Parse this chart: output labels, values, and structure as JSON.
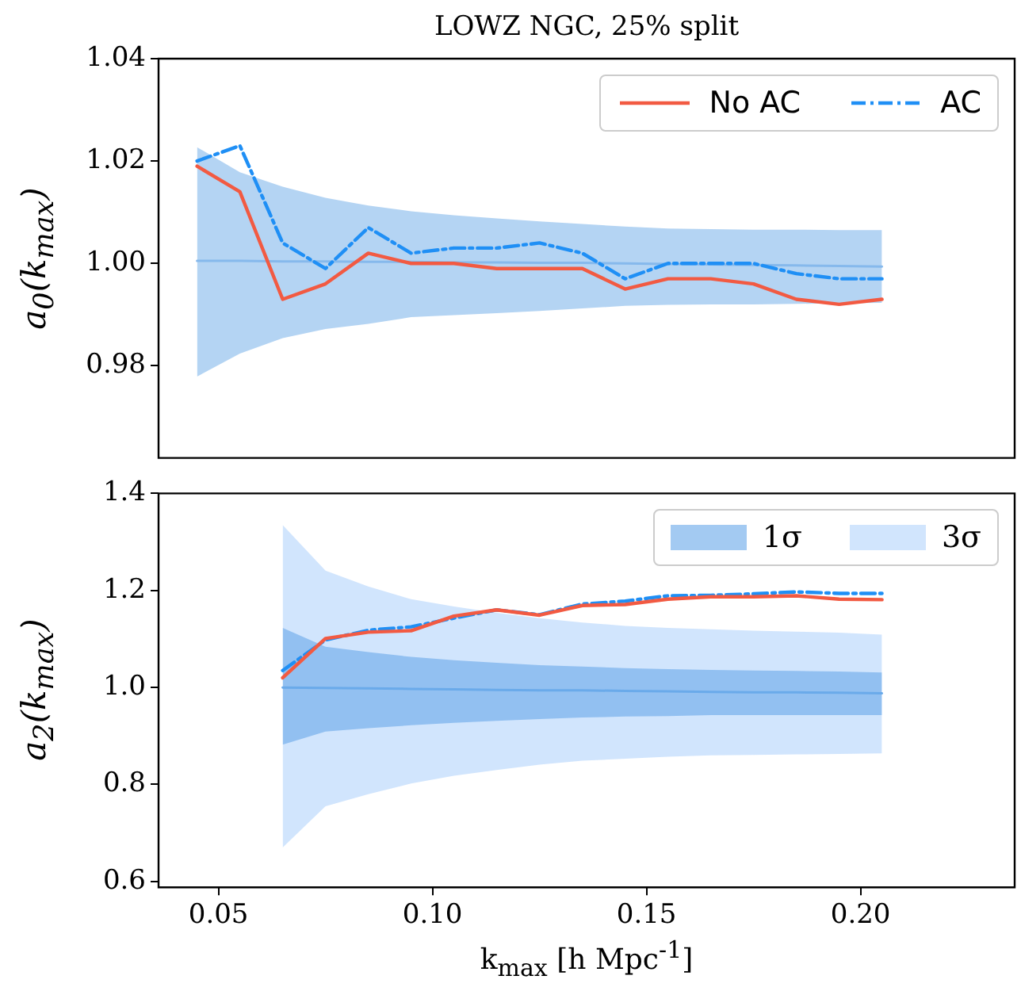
{
  "chart_data": [
    {
      "type": "line",
      "title": "LOWZ NGC, 25% split",
      "ylabel": "a$_{0}$(k$_{max}$)",
      "x": [
        0.045,
        0.055,
        0.065,
        0.075,
        0.085,
        0.095,
        0.105,
        0.115,
        0.125,
        0.135,
        0.145,
        0.155,
        0.165,
        0.175,
        0.185,
        0.195,
        0.205
      ],
      "xlim": [
        0.036,
        0.236
      ],
      "ylim": [
        0.962,
        1.04
      ],
      "yticks": [
        0.98,
        {
          "value": 1.0,
          "label": "1.00"
        },
        1.02,
        1.04
      ],
      "tick_labels": "y",
      "grid": false,
      "legend": "top right",
      "series": [
        {
          "color": "#86b9ec",
          "values": [
            1.0005,
            1.0005,
            1.0004,
            1.0004,
            1.0003,
            1.0003,
            1.0002,
            1.0002,
            1.0001,
            1.0001,
            1.0,
            0.9999,
            0.9998,
            0.9997,
            0.9996,
            0.9995,
            0.9994
          ],
          "upper": [
            1.0227,
            1.0178,
            1.015,
            1.0128,
            1.0113,
            1.0102,
            1.0094,
            1.0088,
            1.0082,
            1.0077,
            1.0072,
            1.0068,
            1.0067,
            1.0066,
            1.0066,
            1.0065,
            1.0065
          ],
          "lower": [
            0.9779,
            0.9824,
            0.9854,
            0.9872,
            0.9882,
            0.9895,
            0.9899,
            0.9903,
            0.9907,
            0.9912,
            0.9917,
            0.9919,
            0.992,
            0.992,
            0.9921,
            0.9922,
            0.9923
          ]
        },
        {
          "name": "No AC",
          "color": "#f25a42",
          "line_style": "solid",
          "values": [
            1.019,
            1.014,
            0.993,
            0.996,
            1.002,
            1.0,
            1.0,
            0.999,
            0.999,
            0.999,
            0.995,
            0.997,
            0.997,
            0.996,
            0.993,
            0.992,
            0.993
          ]
        },
        {
          "name": "AC",
          "color": "#1f8ff5",
          "line_style": "dashdot",
          "values": [
            1.02,
            1.023,
            1.004,
            0.999,
            1.007,
            1.002,
            1.003,
            1.003,
            1.004,
            1.002,
            0.997,
            1.0,
            1.0,
            1.0,
            0.998,
            0.997,
            0.997
          ]
        }
      ]
    },
    {
      "type": "line",
      "xlabel": "k$_{max}$ [h Mpc$^{-1}$]",
      "ylabel": "a$_{2}$(k$_{max}$)",
      "x": [
        0.065,
        0.075,
        0.085,
        0.095,
        0.105,
        0.115,
        0.125,
        0.135,
        0.145,
        0.155,
        0.165,
        0.175,
        0.185,
        0.195,
        0.205
      ],
      "xlim": [
        0.036,
        0.236
      ],
      "xticks": [
        0.05,
        {
          "value": 0.1,
          "label": "0.10"
        },
        0.15,
        {
          "value": 0.2,
          "label": "0.20"
        }
      ],
      "ylim": [
        0.588,
        1.4
      ],
      "yticks": [
        0.6,
        0.8,
        {
          "value": 1.0,
          "label": "1.0"
        },
        1.2,
        1.4
      ],
      "grid": false,
      "legend": "top right",
      "series": [
        {
          "name": "1σ",
          "color": "#6aaaea",
          "values": [
            1.0,
            0.999,
            0.998,
            0.997,
            0.996,
            0.995,
            0.994,
            0.994,
            0.993,
            0.992,
            0.991,
            0.99,
            0.99,
            0.989,
            0.988
          ],
          "upper": [
            1.123,
            1.084,
            1.073,
            1.063,
            1.056,
            1.051,
            1.046,
            1.043,
            1.04,
            1.038,
            1.036,
            1.035,
            1.034,
            1.033,
            1.031
          ],
          "lower": [
            0.882,
            0.909,
            0.916,
            0.922,
            0.927,
            0.931,
            0.935,
            0.938,
            0.94,
            0.941,
            0.943,
            0.943,
            0.943,
            0.943,
            0.943
          ]
        },
        {
          "name": "3σ",
          "color": "#b4d5fb",
          "values": [
            null,
            null,
            null,
            null,
            null,
            null,
            null,
            null,
            null,
            null,
            null,
            null,
            null,
            null,
            null
          ],
          "upper": [
            1.335,
            1.241,
            1.208,
            1.182,
            1.167,
            1.154,
            1.143,
            1.134,
            1.127,
            1.123,
            1.12,
            1.117,
            1.115,
            1.113,
            1.109
          ],
          "lower": [
            0.67,
            0.755,
            0.78,
            0.802,
            0.818,
            0.83,
            0.841,
            0.849,
            0.853,
            0.857,
            0.86,
            0.861,
            0.862,
            0.863,
            0.864
          ]
        },
        {
          "color": "#f25a42",
          "line_style": "solid",
          "values": [
            1.02,
            1.101,
            1.114,
            1.117,
            1.147,
            1.16,
            1.149,
            1.169,
            1.171,
            1.182,
            1.187,
            1.187,
            1.189,
            1.182,
            1.181
          ]
        },
        {
          "color": "#1f8ff5",
          "line_style": "dashdot",
          "values": [
            1.035,
            1.098,
            1.118,
            1.125,
            1.143,
            1.16,
            1.15,
            1.172,
            1.178,
            1.189,
            1.19,
            1.193,
            1.197,
            1.194,
            1.194
          ]
        }
      ]
    }
  ]
}
